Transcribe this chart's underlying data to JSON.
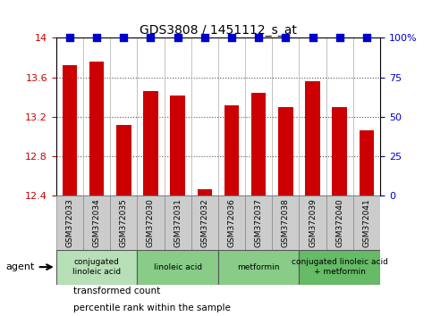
{
  "title": "GDS3808 / 1451112_s_at",
  "samples": [
    "GSM372033",
    "GSM372034",
    "GSM372035",
    "GSM372030",
    "GSM372031",
    "GSM372032",
    "GSM372036",
    "GSM372037",
    "GSM372038",
    "GSM372039",
    "GSM372040",
    "GSM372041"
  ],
  "transformed_count": [
    13.72,
    13.76,
    13.12,
    13.46,
    13.42,
    12.47,
    13.32,
    13.44,
    13.3,
    13.56,
    13.3,
    13.06
  ],
  "percentile_rank": [
    100,
    100,
    100,
    100,
    100,
    100,
    100,
    100,
    100,
    100,
    100,
    100
  ],
  "bar_color": "#cc0000",
  "dot_color": "#0000cc",
  "ylim_left": [
    12.4,
    14.0
  ],
  "ylim_right": [
    0,
    100
  ],
  "yticks_left": [
    12.4,
    12.8,
    13.2,
    13.6,
    14.0
  ],
  "ytick_labels_left": [
    "12.4",
    "12.8",
    "13.2",
    "13.6",
    "14"
  ],
  "yticks_right": [
    0,
    25,
    50,
    75,
    100
  ],
  "ytick_labels_right": [
    "0",
    "25",
    "50",
    "75",
    "100%"
  ],
  "groups": [
    {
      "label": "conjugated\nlinoleic acid",
      "start": 0,
      "end": 3,
      "color": "#b8e0b8"
    },
    {
      "label": "linoleic acid",
      "start": 3,
      "end": 6,
      "color": "#88cc88"
    },
    {
      "label": "metformin",
      "start": 6,
      "end": 9,
      "color": "#88cc88"
    },
    {
      "label": "conjugated linoleic acid\n+ metformin",
      "start": 9,
      "end": 12,
      "color": "#66bb66"
    }
  ],
  "sample_box_color": "#cccccc",
  "bar_width": 0.55,
  "dot_marker": "s",
  "dot_size": 35,
  "grid_linestyle": ":",
  "grid_color": "#555555",
  "grid_linewidth": 0.8,
  "bg_color": "#ffffff",
  "legend_items": [
    {
      "label": "transformed count",
      "color": "#cc0000"
    },
    {
      "label": "percentile rank within the sample",
      "color": "#0000cc"
    }
  ]
}
